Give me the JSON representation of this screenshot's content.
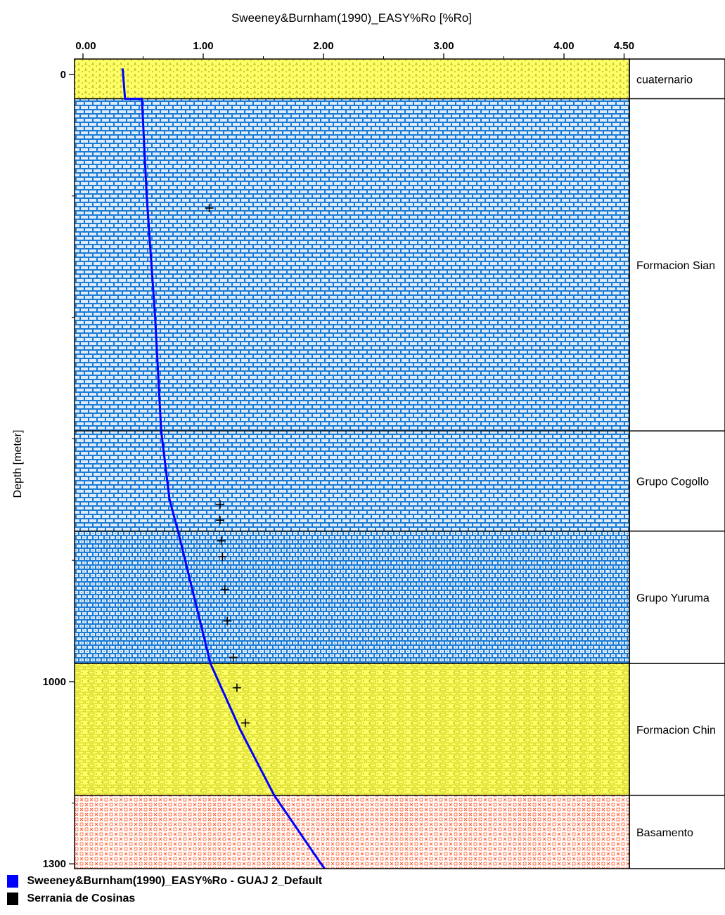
{
  "chart_data": {
    "type": "line",
    "title": "Sweeney&Burnham(1990)_EASY%Ro [%Ro]",
    "xlabel": "",
    "ylabel": "Depth [meter]",
    "xlim": [
      0,
      4.5
    ],
    "ylim": [
      0,
      1300
    ],
    "x_ticks": [
      "0.00",
      "1.00",
      "2.00",
      "3.00",
      "4.00",
      "4.50"
    ],
    "y_ticks": [
      "0",
      "1000",
      "1300"
    ],
    "y_axis_inverted": true,
    "layers": [
      {
        "name": "cuaternario",
        "top": 0,
        "bottom": 40,
        "pattern": "sand-yellow"
      },
      {
        "name": "Formacion Sian",
        "top": 40,
        "bottom": 587,
        "pattern": "limestone-blue"
      },
      {
        "name": "Grupo Cogollo",
        "top": 587,
        "bottom": 752,
        "pattern": "limestone-blue"
      },
      {
        "name": "Grupo Yuruma",
        "top": 752,
        "bottom": 970,
        "pattern": "dolomite-blue"
      },
      {
        "name": "Formacion Chin",
        "top": 970,
        "bottom": 1187,
        "pattern": "sandstone-yellow"
      },
      {
        "name": "Basamento",
        "top": 1187,
        "bottom": 1410,
        "pattern": "crystalline-orange"
      }
    ],
    "series": [
      {
        "name": "Sweeney&Burnham(1990)_EASY%Ro - GUAJ 2_Default",
        "color": "#0000ff",
        "type": "line",
        "points": [
          [
            0.33,
            -10
          ],
          [
            0.35,
            40
          ],
          [
            0.49,
            40
          ],
          [
            0.53,
            200
          ],
          [
            0.6,
            400
          ],
          [
            0.65,
            587
          ],
          [
            0.72,
            700
          ],
          [
            0.79,
            752
          ],
          [
            1.06,
            970
          ],
          [
            1.31,
            1080
          ],
          [
            1.59,
            1187
          ],
          [
            1.98,
            1300
          ],
          [
            2.4,
            1410
          ]
        ]
      },
      {
        "name": "Serrania de Cosinas",
        "color": "#000000",
        "type": "scatter",
        "points": [
          [
            1.05,
            220
          ],
          [
            1.14,
            708
          ],
          [
            1.14,
            734
          ],
          [
            1.15,
            768
          ],
          [
            1.16,
            794
          ],
          [
            1.18,
            848
          ],
          [
            1.2,
            900
          ],
          [
            1.25,
            960
          ],
          [
            1.28,
            1010
          ],
          [
            1.35,
            1068
          ]
        ]
      }
    ]
  }
}
